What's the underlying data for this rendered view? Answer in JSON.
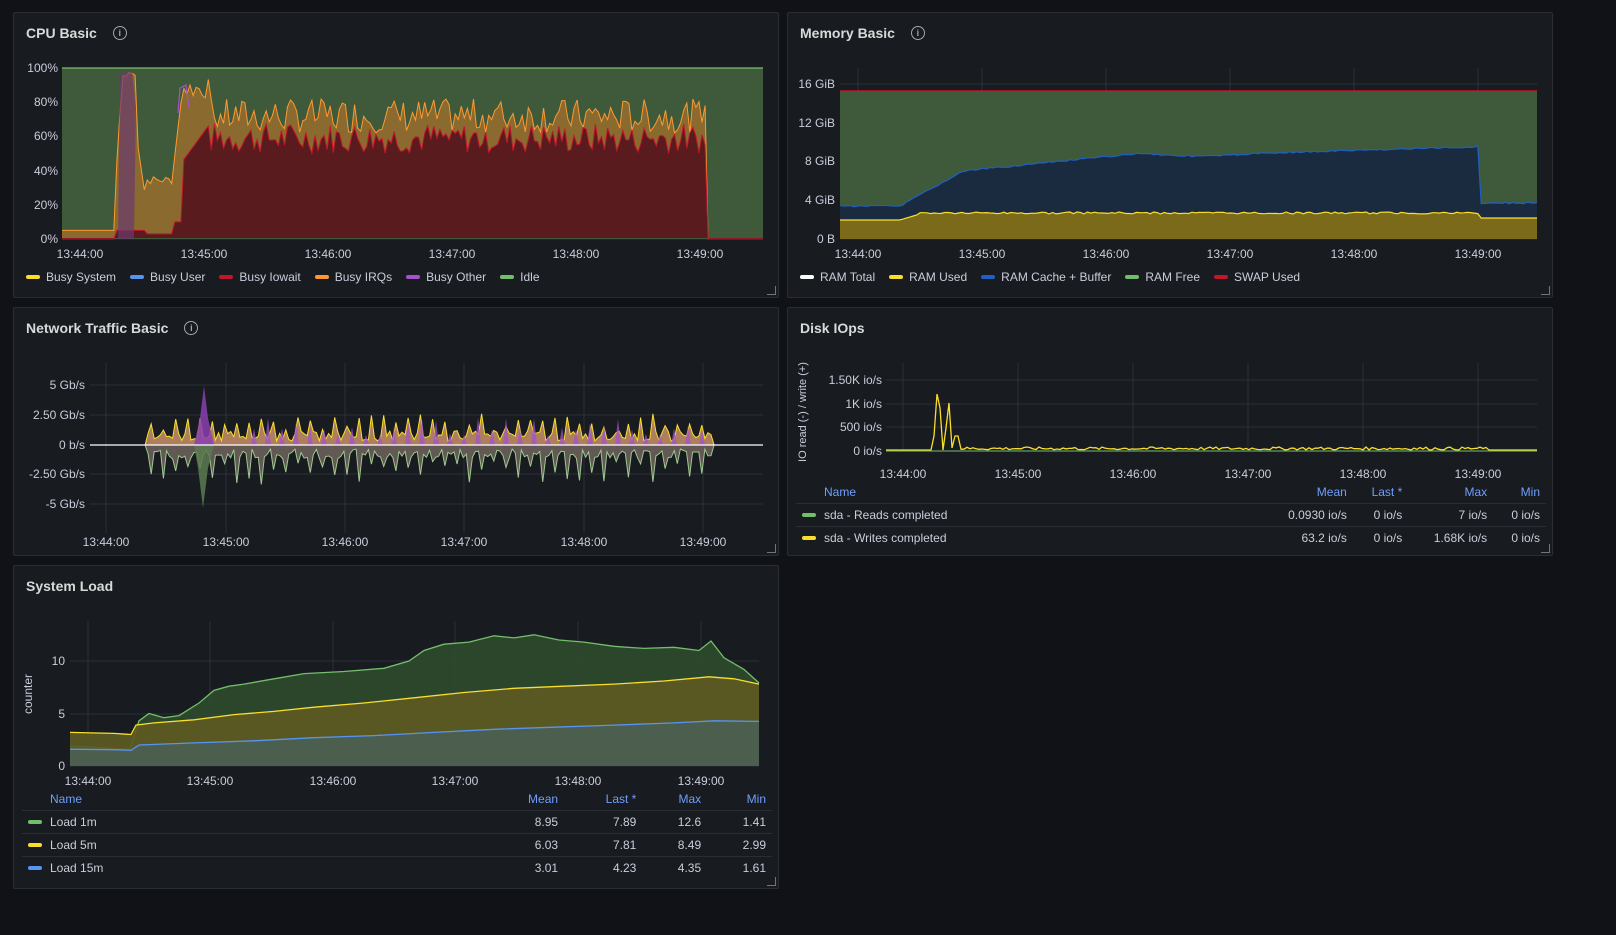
{
  "colors": {
    "yellow": "#fade2a",
    "blue": "#5794f2",
    "red": "#c4162a",
    "orange": "#ff9830",
    "purple": "#a352cc",
    "green": "#73bf69",
    "white": "#ffffff",
    "darkblue": "#1f60c4"
  },
  "cpu": {
    "title": "CPU Basic",
    "yticks": [
      "100%",
      "80%",
      "60%",
      "40%",
      "20%",
      "0%"
    ],
    "xticks": [
      "13:44:00",
      "13:45:00",
      "13:46:00",
      "13:47:00",
      "13:48:00",
      "13:49:00"
    ],
    "legend": [
      {
        "label": "Busy System",
        "color": "#fade2a"
      },
      {
        "label": "Busy User",
        "color": "#5794f2"
      },
      {
        "label": "Busy Iowait",
        "color": "#c4162a"
      },
      {
        "label": "Busy IRQs",
        "color": "#ff9830"
      },
      {
        "label": "Busy Other",
        "color": "#a352cc"
      },
      {
        "label": "Idle",
        "color": "#73bf69"
      }
    ]
  },
  "memory": {
    "title": "Memory Basic",
    "yticks": [
      "16 GiB",
      "12 GiB",
      "8 GiB",
      "4 GiB",
      "0 B"
    ],
    "xticks": [
      "13:44:00",
      "13:45:00",
      "13:46:00",
      "13:47:00",
      "13:48:00",
      "13:49:00"
    ],
    "legend": [
      {
        "label": "RAM Total",
        "color": "#ffffff"
      },
      {
        "label": "RAM Used",
        "color": "#fade2a"
      },
      {
        "label": "RAM Cache + Buffer",
        "color": "#1f60c4"
      },
      {
        "label": "RAM Free",
        "color": "#73bf69"
      },
      {
        "label": "SWAP Used",
        "color": "#c4162a"
      }
    ]
  },
  "network": {
    "title": "Network Traffic Basic",
    "yticks": [
      "5 Gb/s",
      "2.50 Gb/s",
      "0 b/s",
      "-2.50 Gb/s",
      "-5 Gb/s"
    ],
    "xticks": [
      "13:44:00",
      "13:45:00",
      "13:46:00",
      "13:47:00",
      "13:48:00",
      "13:49:00"
    ]
  },
  "disk": {
    "title": "Disk IOps",
    "ylabel": "IO read (-) / write (+)",
    "yticks": [
      "1.50K io/s",
      "1K io/s",
      "500 io/s",
      "0 io/s"
    ],
    "xticks": [
      "13:44:00",
      "13:45:00",
      "13:46:00",
      "13:47:00",
      "13:48:00",
      "13:49:00"
    ],
    "headers": [
      "Name",
      "Mean",
      "Last *",
      "Max",
      "Min"
    ],
    "rows": [
      {
        "name": "sda - Reads completed",
        "color": "#73bf69",
        "mean": "0.0930 io/s",
        "last": "0 io/s",
        "max": "7 io/s",
        "min": "0 io/s"
      },
      {
        "name": "sda - Writes completed",
        "color": "#fade2a",
        "mean": "63.2 io/s",
        "last": "0 io/s",
        "max": "1.68K io/s",
        "min": "0 io/s"
      }
    ]
  },
  "load": {
    "title": "System Load",
    "ylabel": "counter",
    "yticks": [
      "10",
      "5",
      "0"
    ],
    "xticks": [
      "13:44:00",
      "13:45:00",
      "13:46:00",
      "13:47:00",
      "13:48:00",
      "13:49:00"
    ],
    "headers": [
      "Name",
      "Mean",
      "Last *",
      "Max",
      "Min"
    ],
    "rows": [
      {
        "name": "Load 1m",
        "color": "#73bf69",
        "mean": "8.95",
        "last": "7.89",
        "max": "12.6",
        "min": "1.41"
      },
      {
        "name": "Load 5m",
        "color": "#fade2a",
        "mean": "6.03",
        "last": "7.81",
        "max": "8.49",
        "min": "2.99"
      },
      {
        "name": "Load 15m",
        "color": "#5794f2",
        "mean": "3.01",
        "last": "4.23",
        "max": "4.35",
        "min": "1.61"
      }
    ]
  }
}
